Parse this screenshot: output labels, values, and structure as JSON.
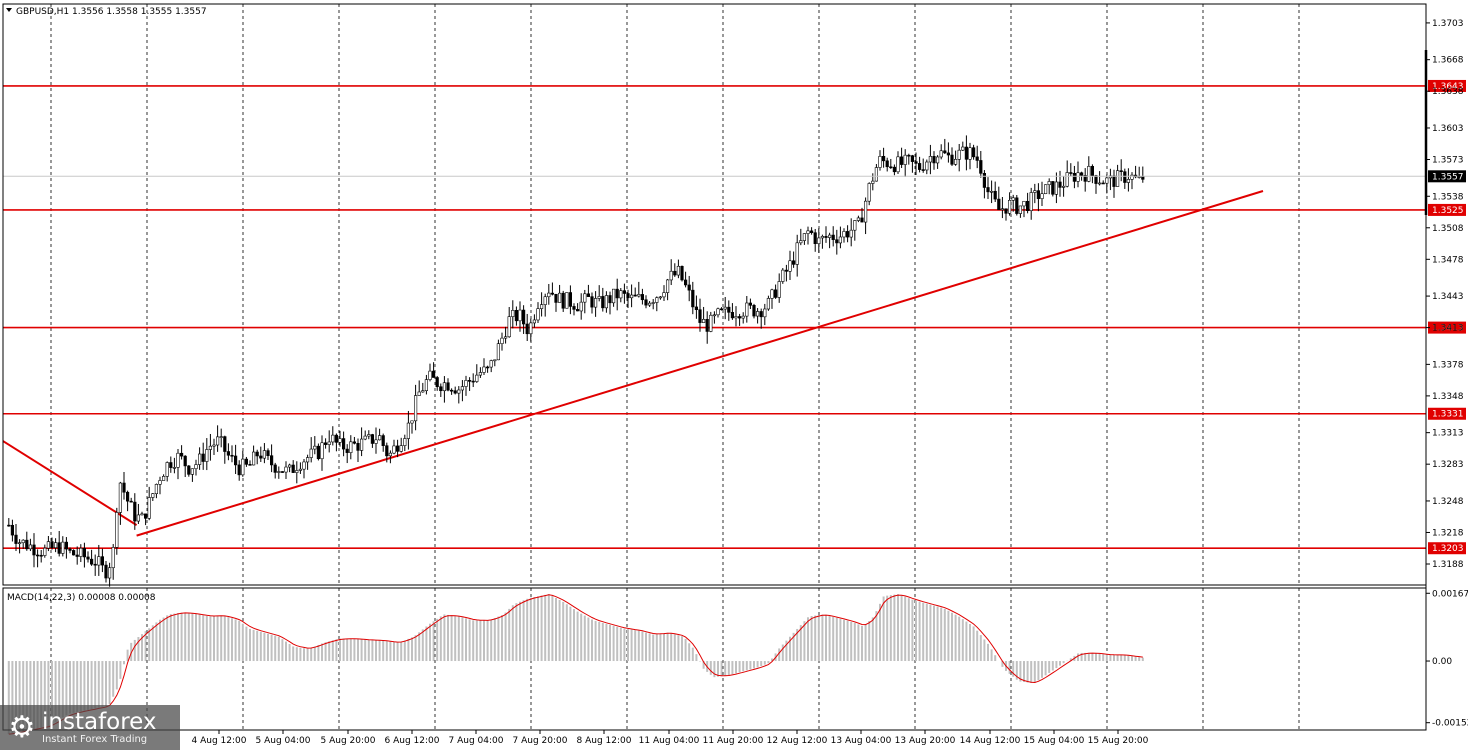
{
  "window": {
    "chart_header": "GBPUSD,H1  1.3556 1.3558 1.3555 1.3557",
    "macd_header": "MACD(14,22,3) 0.00008 0.00008"
  },
  "colors": {
    "level_line": "#e00000",
    "grid": "#000000",
    "current_price_tag": "#000000",
    "macd_histogram": "#c0c0c0",
    "macd_signal": "#e00000"
  },
  "branding": {
    "name": "instaforex",
    "tagline": "Instant Forex Trading",
    "icon": "gear-icon"
  },
  "chart_data": [
    {
      "type": "candlestick",
      "symbol": "GBPUSD",
      "timeframe": "H1",
      "ylim": [
        1.3168,
        1.3721
      ],
      "y_ticks": [
        "1.3703",
        "1.3668",
        "1.3638",
        "1.3603",
        "1.3573",
        "1.3538",
        "1.3508",
        "1.3478",
        "1.3443",
        "1.3413",
        "1.3378",
        "1.3348",
        "1.3313",
        "1.3283",
        "1.3248",
        "1.3218",
        "1.3188"
      ],
      "x_ticks": [
        "4 Aug 12:00",
        "5 Aug 04:00",
        "5 Aug 20:00",
        "6 Aug 12:00",
        "7 Aug 04:00",
        "7 Aug 20:00",
        "8 Aug 12:00",
        "11 Aug 04:00",
        "11 Aug 20:00",
        "12 Aug 12:00",
        "13 Aug 04:00",
        "13 Aug 20:00",
        "14 Aug 12:00",
        "15 Aug 04:00",
        "15 Aug 20:00"
      ],
      "current_price": "1.3557",
      "levels": [
        "1.3643",
        "1.3525",
        "1.3413",
        "1.3331",
        "1.3203"
      ],
      "trendlines": [
        {
          "from": {
            "x": "31 Jul",
            "y": 1.3305
          },
          "to": {
            "x": "1 Aug",
            "y": 1.3225
          }
        },
        {
          "from": {
            "x": "1 Aug",
            "y": 1.3215
          },
          "to": {
            "x": "18 Aug",
            "y": 1.3543
          }
        }
      ],
      "close_path": [
        [
          0,
          1.3225
        ],
        [
          10,
          1.321
        ],
        [
          22,
          1.3205
        ],
        [
          35,
          1.32
        ],
        [
          50,
          1.3205
        ],
        [
          62,
          1.3198
        ],
        [
          75,
          1.3195
        ],
        [
          88,
          1.319
        ],
        [
          96,
          1.318
        ],
        [
          104,
          1.3195
        ],
        [
          110,
          1.327
        ],
        [
          118,
          1.325
        ],
        [
          125,
          1.3235
        ],
        [
          133,
          1.323
        ],
        [
          140,
          1.3245
        ],
        [
          150,
          1.327
        ],
        [
          160,
          1.3285
        ],
        [
          170,
          1.329
        ],
        [
          180,
          1.328
        ],
        [
          190,
          1.3285
        ],
        [
          200,
          1.33
        ],
        [
          210,
          1.3305
        ],
        [
          220,
          1.329
        ],
        [
          230,
          1.328
        ],
        [
          240,
          1.328
        ],
        [
          250,
          1.3295
        ],
        [
          260,
          1.3285
        ],
        [
          270,
          1.328
        ],
        [
          280,
          1.3275
        ],
        [
          290,
          1.3285
        ],
        [
          300,
          1.329
        ],
        [
          310,
          1.3295
        ],
        [
          320,
          1.331
        ],
        [
          330,
          1.33
        ],
        [
          340,
          1.33
        ],
        [
          350,
          1.3302
        ],
        [
          360,
          1.3305
        ],
        [
          370,
          1.331
        ],
        [
          380,
          1.329
        ],
        [
          390,
          1.3305
        ],
        [
          400,
          1.332
        ],
        [
          410,
          1.335
        ],
        [
          420,
          1.3365
        ],
        [
          430,
          1.336
        ],
        [
          440,
          1.336
        ],
        [
          450,
          1.3355
        ],
        [
          460,
          1.3362
        ],
        [
          470,
          1.337
        ],
        [
          480,
          1.3372
        ],
        [
          490,
          1.3395
        ],
        [
          500,
          1.342
        ],
        [
          510,
          1.3425
        ],
        [
          520,
          1.341
        ],
        [
          530,
          1.344
        ],
        [
          540,
          1.345
        ],
        [
          550,
          1.344
        ],
        [
          560,
          1.3438
        ],
        [
          570,
          1.3435
        ],
        [
          580,
          1.344
        ],
        [
          590,
          1.3435
        ],
        [
          600,
          1.344
        ],
        [
          610,
          1.3445
        ],
        [
          620,
          1.344
        ],
        [
          630,
          1.344
        ],
        [
          640,
          1.344
        ],
        [
          650,
          1.3445
        ],
        [
          660,
          1.346
        ],
        [
          670,
          1.3465
        ],
        [
          680,
          1.3445
        ],
        [
          690,
          1.342
        ],
        [
          700,
          1.3415
        ],
        [
          710,
          1.3425
        ],
        [
          720,
          1.3428
        ],
        [
          730,
          1.343
        ],
        [
          740,
          1.343
        ],
        [
          750,
          1.343
        ],
        [
          760,
          1.3435
        ],
        [
          770,
          1.3455
        ],
        [
          780,
          1.347
        ],
        [
          790,
          1.349
        ],
        [
          800,
          1.3505
        ],
        [
          810,
          1.3495
        ],
        [
          820,
          1.35
        ],
        [
          830,
          1.35
        ],
        [
          840,
          1.3505
        ],
        [
          850,
          1.351
        ],
        [
          860,
          1.3545
        ],
        [
          870,
          1.3572
        ],
        [
          880,
          1.357
        ],
        [
          890,
          1.3568
        ],
        [
          900,
          1.357
        ],
        [
          910,
          1.3565
        ],
        [
          920,
          1.3575
        ],
        [
          930,
          1.358
        ],
        [
          940,
          1.3575
        ],
        [
          950,
          1.3578
        ],
        [
          960,
          1.358
        ],
        [
          970,
          1.3572
        ],
        [
          980,
          1.354
        ],
        [
          990,
          1.3525
        ],
        [
          1000,
          1.353
        ],
        [
          1010,
          1.3528
        ],
        [
          1020,
          1.3532
        ],
        [
          1030,
          1.354
        ],
        [
          1040,
          1.3545
        ],
        [
          1050,
          1.3548
        ],
        [
          1060,
          1.3555
        ],
        [
          1070,
          1.356
        ],
        [
          1080,
          1.356
        ],
        [
          1090,
          1.3555
        ],
        [
          1100,
          1.3552
        ],
        [
          1110,
          1.3555
        ],
        [
          1120,
          1.3558
        ],
        [
          1130,
          1.3552
        ],
        [
          1135,
          1.3557
        ]
      ]
    },
    {
      "type": "bar",
      "name": "MACD(14,22,3)",
      "ylim": [
        -0.0017,
        0.0018
      ],
      "y_ticks": [
        "0.00167",
        "0.00",
        "-0.00152"
      ],
      "histogram_path": [
        [
          0,
          -0.0018
        ],
        [
          20,
          -0.0017
        ],
        [
          40,
          -0.0016
        ],
        [
          60,
          -0.0013
        ],
        [
          80,
          -0.0012
        ],
        [
          100,
          -0.0011
        ],
        [
          110,
          -0.0006
        ],
        [
          120,
          0.0004
        ],
        [
          130,
          0.0006
        ],
        [
          140,
          0.0008
        ],
        [
          150,
          0.001
        ],
        [
          160,
          0.00115
        ],
        [
          175,
          0.0012
        ],
        [
          190,
          0.00115
        ],
        [
          200,
          0.0011
        ],
        [
          215,
          0.00112
        ],
        [
          230,
          0.001
        ],
        [
          240,
          0.0008
        ],
        [
          255,
          0.0007
        ],
        [
          270,
          0.0006
        ],
        [
          285,
          0.00035
        ],
        [
          300,
          0.0003
        ],
        [
          315,
          0.00045
        ],
        [
          330,
          0.00055
        ],
        [
          345,
          0.00055
        ],
        [
          360,
          0.00052
        ],
        [
          375,
          0.0005
        ],
        [
          390,
          0.00045
        ],
        [
          405,
          0.0006
        ],
        [
          420,
          0.0009
        ],
        [
          435,
          0.00115
        ],
        [
          450,
          0.0011
        ],
        [
          465,
          0.001
        ],
        [
          480,
          0.001
        ],
        [
          495,
          0.00115
        ],
        [
          505,
          0.0014
        ],
        [
          520,
          0.00155
        ],
        [
          540,
          0.00165
        ],
        [
          555,
          0.00145
        ],
        [
          570,
          0.0012
        ],
        [
          585,
          0.001
        ],
        [
          600,
          0.0009
        ],
        [
          615,
          0.0008
        ],
        [
          630,
          0.00075
        ],
        [
          645,
          0.00065
        ],
        [
          660,
          0.0007
        ],
        [
          675,
          0.0006
        ],
        [
          685,
          0.0003
        ],
        [
          695,
          -0.0002
        ],
        [
          705,
          -0.0004
        ],
        [
          720,
          -0.00035
        ],
        [
          735,
          -0.00025
        ],
        [
          750,
          -0.00015
        ],
        [
          760,
          -5e-05
        ],
        [
          770,
          0.0003
        ],
        [
          785,
          0.0007
        ],
        [
          800,
          0.0011
        ],
        [
          815,
          0.00115
        ],
        [
          830,
          0.00105
        ],
        [
          845,
          0.00095
        ],
        [
          855,
          0.00085
        ],
        [
          865,
          0.0011
        ],
        [
          875,
          0.0016
        ],
        [
          890,
          0.00165
        ],
        [
          905,
          0.0015
        ],
        [
          920,
          0.0014
        ],
        [
          935,
          0.0013
        ],
        [
          950,
          0.0011
        ],
        [
          965,
          0.00085
        ],
        [
          980,
          0.0004
        ],
        [
          995,
          -0.0002
        ],
        [
          1010,
          -0.0005
        ],
        [
          1025,
          -0.00055
        ],
        [
          1040,
          -0.0003
        ],
        [
          1055,
          -5e-05
        ],
        [
          1070,
          0.0002
        ],
        [
          1085,
          0.0002
        ],
        [
          1100,
          0.00015
        ],
        [
          1115,
          0.00015
        ],
        [
          1135,
          8e-05
        ]
      ]
    }
  ]
}
